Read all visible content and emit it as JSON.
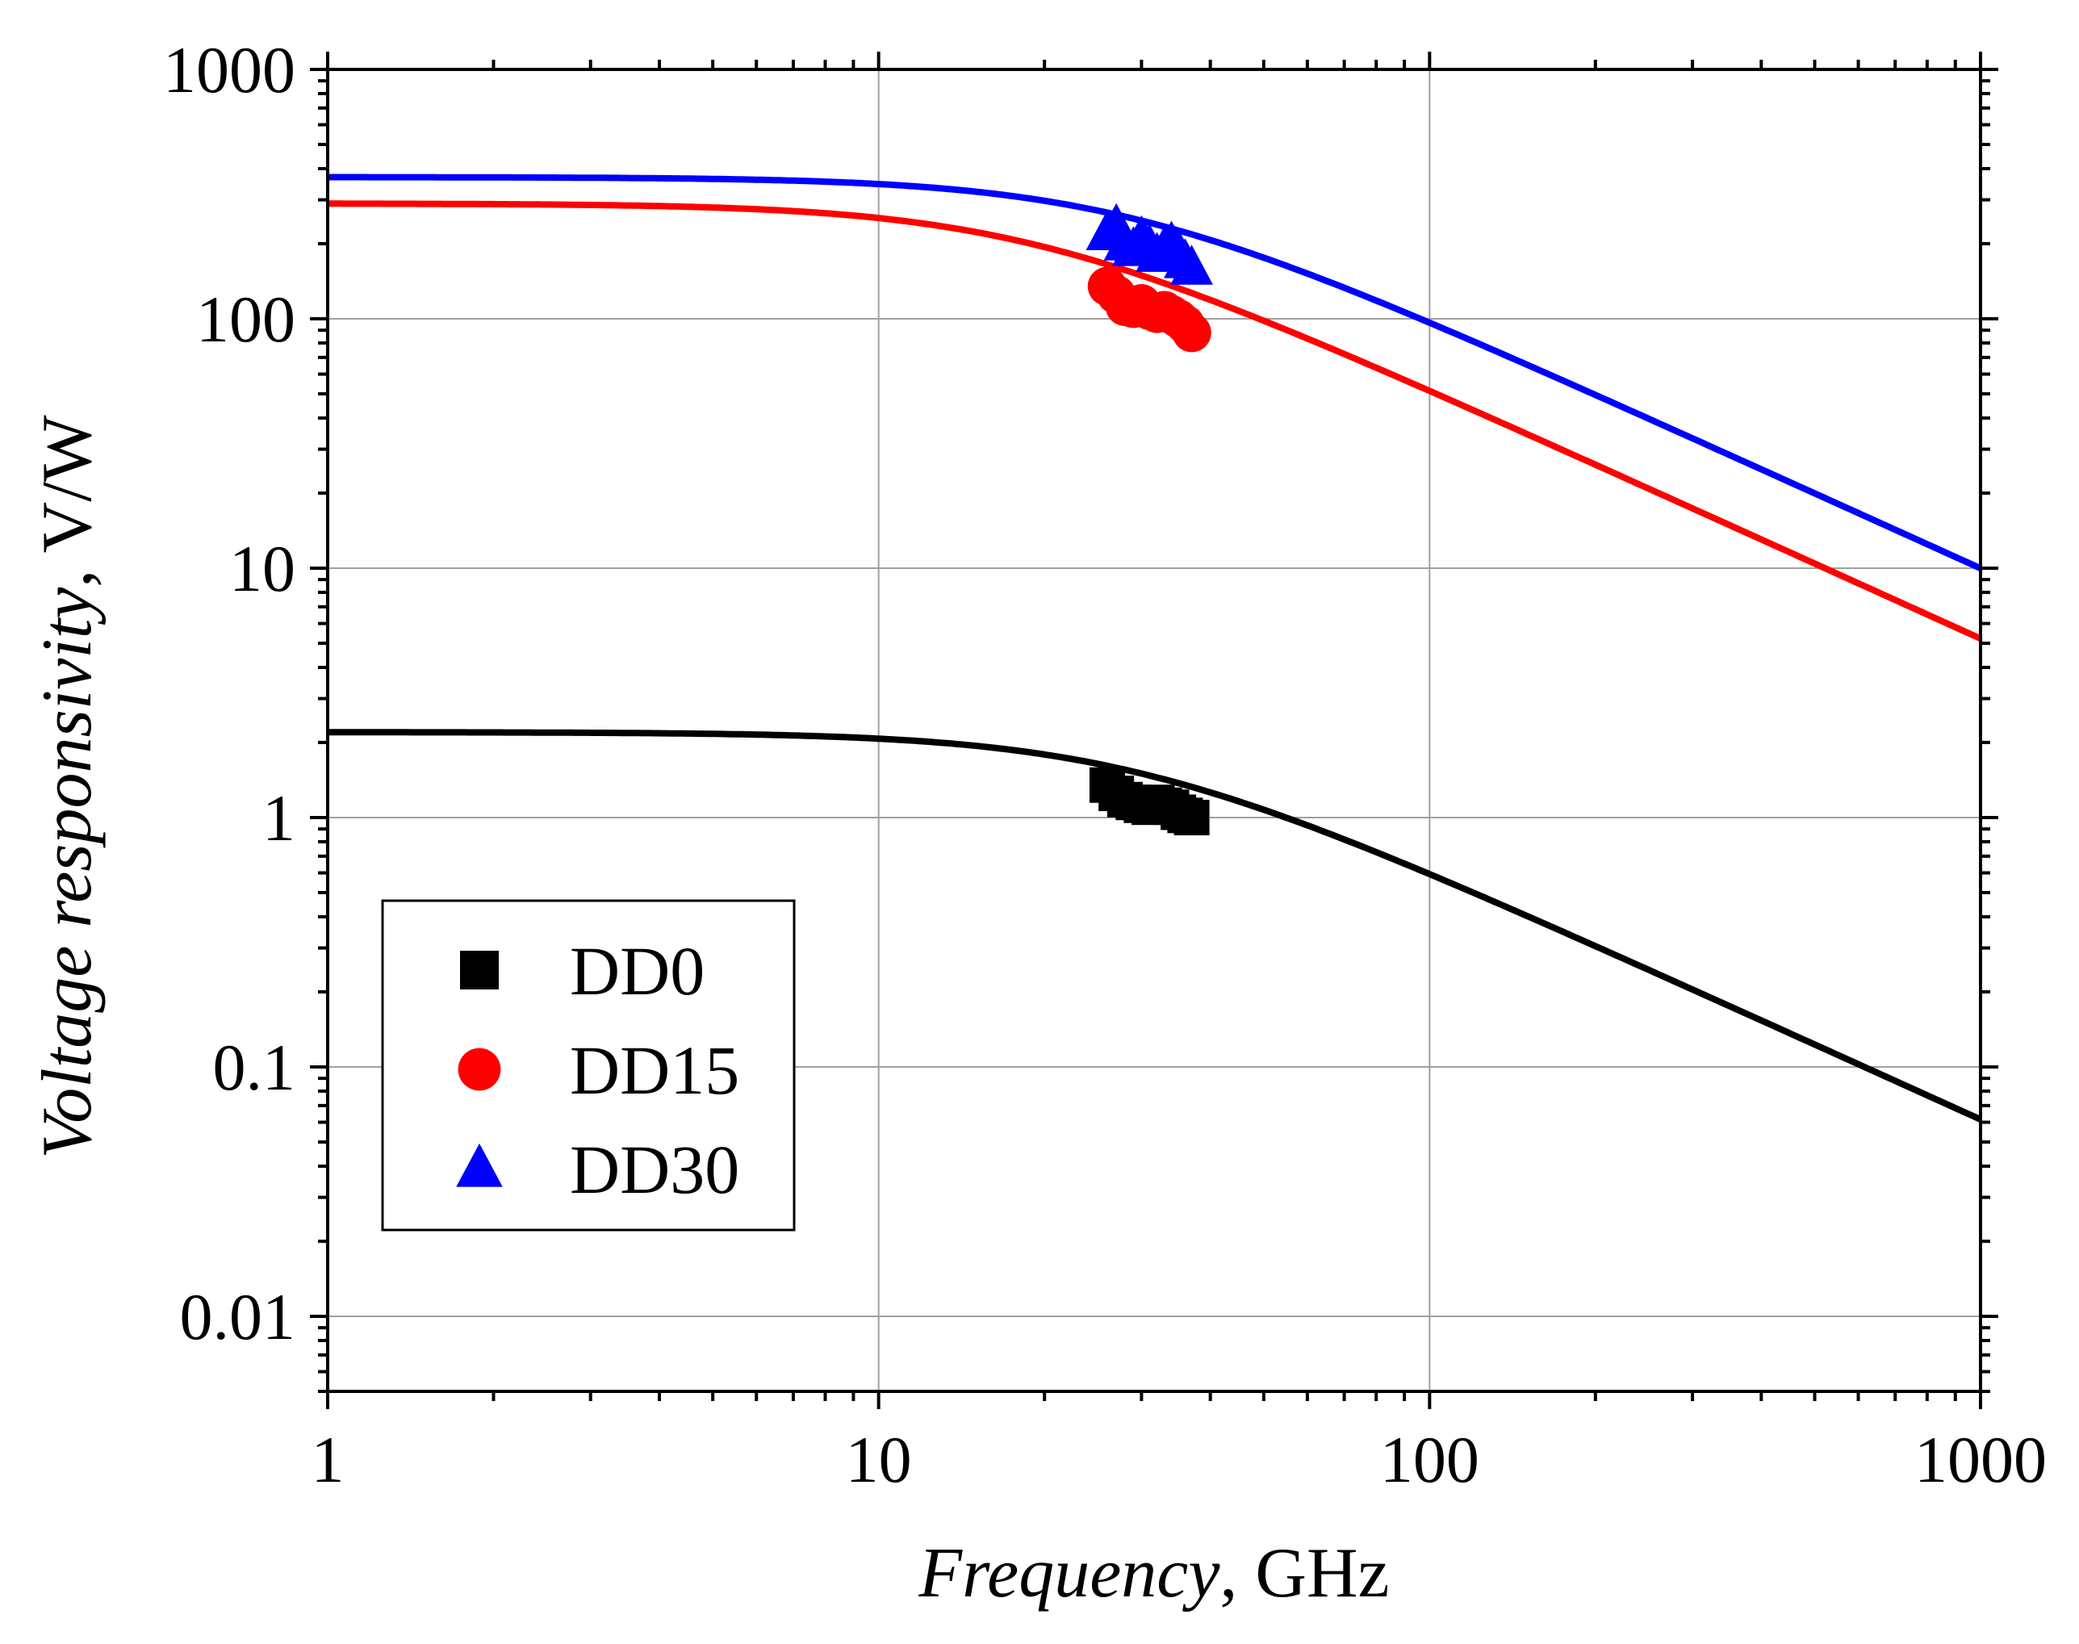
{
  "chart_data": {
    "type": "line",
    "title": "",
    "xlabel_italic": "Frequency",
    "xlabel_rest": ", GHz",
    "ylabel_italic": "Voltage responsivity",
    "ylabel_rest": ", V/W",
    "x_scale": "log",
    "y_scale": "log",
    "xlim": [
      1,
      1000
    ],
    "ylim": [
      0.005,
      1000
    ],
    "grid": true,
    "legend_position": "lower-left",
    "x_ticks": [
      1,
      10,
      100,
      1000
    ],
    "x_tick_labels": [
      "1",
      "10",
      "100",
      "1000"
    ],
    "y_ticks": [
      0.01,
      0.1,
      1,
      10,
      100,
      1000
    ],
    "y_tick_labels": [
      "0.01",
      "0.1",
      "1",
      "10",
      "100",
      "1000"
    ],
    "series": [
      {
        "name": "DD0",
        "color": "#000000",
        "marker": "square",
        "fit_curve": {
          "low_freq_value": 2.2,
          "cutoff_ghz": 28
        },
        "points": [
          {
            "x": 26,
            "y": 1.35
          },
          {
            "x": 27,
            "y": 1.25
          },
          {
            "x": 28,
            "y": 1.18
          },
          {
            "x": 29,
            "y": 1.15
          },
          {
            "x": 30,
            "y": 1.12
          },
          {
            "x": 31,
            "y": 1.1
          },
          {
            "x": 32,
            "y": 1.15
          },
          {
            "x": 33,
            "y": 1.12
          },
          {
            "x": 34,
            "y": 1.1
          },
          {
            "x": 35,
            "y": 1.05
          },
          {
            "x": 36,
            "y": 1.02
          },
          {
            "x": 37,
            "y": 1.0
          }
        ]
      },
      {
        "name": "DD15",
        "color": "#ff0000",
        "marker": "circle",
        "fit_curve": {
          "low_freq_value": 290,
          "cutoff_ghz": 18
        },
        "points": [
          {
            "x": 26,
            "y": 135
          },
          {
            "x": 27,
            "y": 125
          },
          {
            "x": 28,
            "y": 112
          },
          {
            "x": 29,
            "y": 110
          },
          {
            "x": 30,
            "y": 115
          },
          {
            "x": 31,
            "y": 108
          },
          {
            "x": 32,
            "y": 105
          },
          {
            "x": 33,
            "y": 108
          },
          {
            "x": 34,
            "y": 104
          },
          {
            "x": 35,
            "y": 100
          },
          {
            "x": 36,
            "y": 95
          },
          {
            "x": 37,
            "y": 88
          }
        ]
      },
      {
        "name": "DD30",
        "color": "#0000ff",
        "marker": "triangle",
        "fit_curve": {
          "low_freq_value": 370,
          "cutoff_ghz": 27
        },
        "points": [
          {
            "x": 26,
            "y": 220
          },
          {
            "x": 27,
            "y": 235
          },
          {
            "x": 28,
            "y": 200
          },
          {
            "x": 29,
            "y": 190
          },
          {
            "x": 30,
            "y": 210
          },
          {
            "x": 31,
            "y": 195
          },
          {
            "x": 32,
            "y": 180
          },
          {
            "x": 33,
            "y": 190
          },
          {
            "x": 34,
            "y": 200
          },
          {
            "x": 35,
            "y": 185
          },
          {
            "x": 36,
            "y": 170
          },
          {
            "x": 37,
            "y": 160
          }
        ]
      }
    ]
  }
}
